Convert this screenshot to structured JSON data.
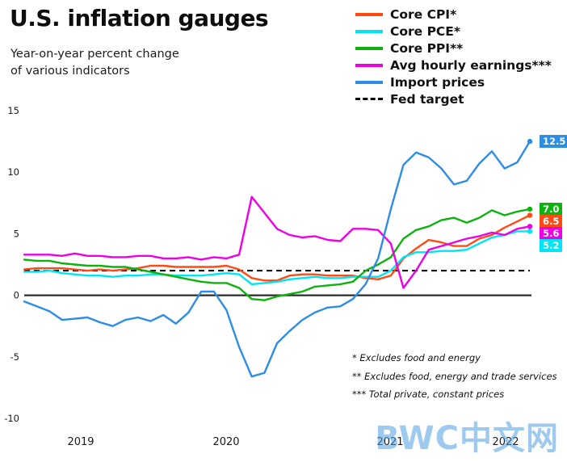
{
  "watermark": "BWC中文网",
  "chart_data": {
    "type": "line",
    "title": "U.S. inflation gauges",
    "subtitle_lines": [
      "Year-on-year percent change",
      "of various indicators"
    ],
    "ylim": [
      -10,
      15
    ],
    "yticks": [
      15,
      10,
      5,
      0,
      -5,
      -10
    ],
    "xtick_labels": [
      "2019",
      "2020",
      "2021",
      "2022"
    ],
    "legend_position": "top-right",
    "grid": false,
    "x_monthly": [
      "2018-10",
      "2018-11",
      "2018-12",
      "2019-01",
      "2019-02",
      "2019-03",
      "2019-04",
      "2019-05",
      "2019-06",
      "2019-07",
      "2019-08",
      "2019-09",
      "2019-10",
      "2019-11",
      "2019-12",
      "2020-01",
      "2020-02",
      "2020-03",
      "2020-04",
      "2020-05",
      "2020-06",
      "2020-07",
      "2020-08",
      "2020-09",
      "2020-10",
      "2020-11",
      "2020-12",
      "2021-01",
      "2021-02",
      "2021-03",
      "2021-04",
      "2021-05",
      "2021-06",
      "2021-07",
      "2021-08",
      "2021-09",
      "2021-10",
      "2021-11",
      "2021-12",
      "2022-01",
      "2022-02"
    ],
    "series": [
      {
        "id": "core-cpi",
        "name": "Core CPI*",
        "color": "#ff4a14",
        "end_label": "6.5",
        "values": [
          2.1,
          2.2,
          2.2,
          2.2,
          2.1,
          2.0,
          2.1,
          2.0,
          2.1,
          2.2,
          2.4,
          2.4,
          2.3,
          2.3,
          2.3,
          2.3,
          2.4,
          2.1,
          1.4,
          1.2,
          1.2,
          1.6,
          1.7,
          1.7,
          1.6,
          1.6,
          1.6,
          1.4,
          1.3,
          1.6,
          3.0,
          3.8,
          4.5,
          4.3,
          4.0,
          4.0,
          4.6,
          4.9,
          5.5,
          6.0,
          6.5
        ]
      },
      {
        "id": "core-pce",
        "name": "Core PCE*",
        "color": "#00e5f5",
        "end_label": "5.2",
        "values": [
          1.9,
          1.9,
          2.0,
          1.8,
          1.7,
          1.6,
          1.6,
          1.5,
          1.6,
          1.6,
          1.7,
          1.7,
          1.6,
          1.6,
          1.6,
          1.7,
          1.8,
          1.7,
          0.9,
          1.0,
          1.1,
          1.3,
          1.4,
          1.5,
          1.4,
          1.4,
          1.5,
          1.5,
          1.5,
          2.0,
          3.1,
          3.5,
          3.5,
          3.6,
          3.6,
          3.7,
          4.2,
          4.7,
          4.9,
          5.2,
          5.2
        ]
      },
      {
        "id": "core-ppi",
        "name": "Core PPI**",
        "color": "#0db20d",
        "end_label": "7.0",
        "values": [
          2.9,
          2.8,
          2.8,
          2.6,
          2.5,
          2.4,
          2.4,
          2.3,
          2.3,
          2.1,
          1.9,
          1.7,
          1.5,
          1.3,
          1.1,
          1.0,
          1.0,
          0.6,
          -0.3,
          -0.4,
          -0.1,
          0.1,
          0.3,
          0.7,
          0.8,
          0.9,
          1.1,
          2.0,
          2.5,
          3.1,
          4.6,
          5.3,
          5.6,
          6.1,
          6.3,
          5.9,
          6.3,
          6.9,
          6.5,
          6.8,
          7.0
        ]
      },
      {
        "id": "avg-hourly-earnings",
        "name": "Avg hourly earnings***",
        "color": "#ee00e4",
        "end_label": "5.6",
        "values": [
          3.3,
          3.3,
          3.3,
          3.2,
          3.4,
          3.2,
          3.2,
          3.1,
          3.1,
          3.2,
          3.2,
          3.0,
          3.0,
          3.1,
          2.9,
          3.1,
          3.0,
          3.3,
          8.0,
          6.7,
          5.4,
          4.9,
          4.7,
          4.8,
          4.5,
          4.4,
          5.4,
          5.4,
          5.3,
          4.2,
          0.6,
          2.0,
          3.7,
          4.0,
          4.3,
          4.6,
          4.8,
          5.1,
          4.9,
          5.4,
          5.6
        ]
      },
      {
        "id": "import-prices",
        "name": "Import prices",
        "color": "#2d8de5",
        "end_label": "12.5",
        "values": [
          -0.5,
          -0.9,
          -1.3,
          -2.0,
          -1.9,
          -1.8,
          -2.2,
          -2.5,
          -2.0,
          -1.8,
          -2.1,
          -1.6,
          -2.3,
          -1.4,
          0.3,
          0.3,
          -1.2,
          -4.2,
          -6.6,
          -6.3,
          -3.9,
          -2.9,
          -2.0,
          -1.4,
          -1.0,
          -0.9,
          -0.3,
          0.9,
          3.0,
          7.0,
          10.6,
          11.6,
          11.2,
          10.3,
          9.0,
          9.3,
          10.7,
          11.7,
          10.3,
          10.8,
          12.5
        ]
      }
    ],
    "fed_target": {
      "label": "Fed target",
      "value": 2
    },
    "footnotes": [
      "* Excludes food and energy",
      "** Excludes food, energy and trade services",
      "*** Total private, constant prices"
    ]
  }
}
